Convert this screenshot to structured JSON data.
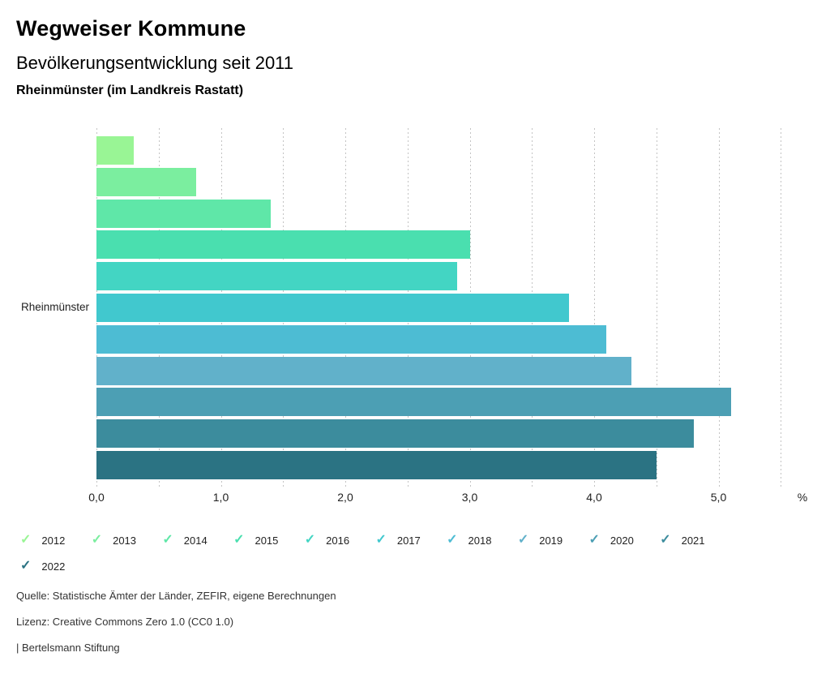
{
  "header": {
    "title": "Wegweiser Kommune",
    "subtitle": "Bevölkerungsentwicklung seit 2011",
    "location": "Rheinmünster (im Landkreis Rastatt)"
  },
  "chart_data": {
    "type": "bar",
    "orientation": "horizontal",
    "title": "Bevölkerungsentwicklung seit 2011",
    "category_label": "Rheinmünster",
    "series": [
      {
        "name": "2012",
        "value": 0.3,
        "color": "#99f595"
      },
      {
        "name": "2013",
        "value": 0.8,
        "color": "#7bee9f"
      },
      {
        "name": "2014",
        "value": 1.4,
        "color": "#5fe7a8"
      },
      {
        "name": "2015",
        "value": 3.0,
        "color": "#4adfaf"
      },
      {
        "name": "2016",
        "value": 2.9,
        "color": "#43d5c3"
      },
      {
        "name": "2017",
        "value": 3.8,
        "color": "#41c8ce"
      },
      {
        "name": "2018",
        "value": 4.1,
        "color": "#4dbcd3"
      },
      {
        "name": "2019",
        "value": 4.3,
        "color": "#61b1ca"
      },
      {
        "name": "2020",
        "value": 5.1,
        "color": "#4c9fb4"
      },
      {
        "name": "2021",
        "value": 4.8,
        "color": "#3c8c9d"
      },
      {
        "name": "2022",
        "value": 4.5,
        "color": "#2b7383"
      }
    ],
    "x_ticks": [
      "0,0",
      "1,0",
      "2,0",
      "3,0",
      "4,0",
      "5,0"
    ],
    "x_tick_values": [
      0,
      1,
      2,
      3,
      4,
      5
    ],
    "x_unit_label": "%",
    "xlim": [
      0,
      5.5
    ],
    "gridline_step": 0.5,
    "grid": true,
    "legend_position": "bottom",
    "legend_check_glyph": "✓",
    "legend_items_per_row": 10
  },
  "footer": {
    "source": "Quelle: Statistische Ämter der Länder, ZEFIR, eigene Berechnungen",
    "license": "Lizenz: Creative Commons Zero 1.0 (CC0 1.0)",
    "attribution": "| Bertelsmann Stiftung"
  }
}
